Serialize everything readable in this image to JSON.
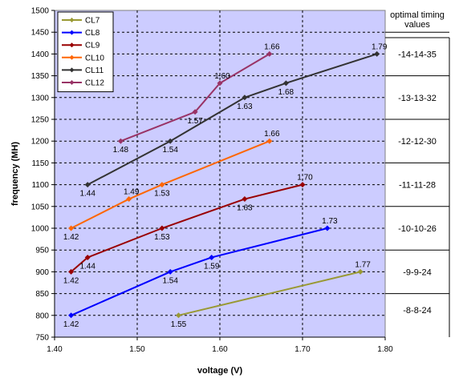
{
  "chart_data": {
    "type": "line",
    "xlabel": "voltage (V)",
    "ylabel": "frequency (MH)",
    "xlim": [
      1.4,
      1.8
    ],
    "ylim": [
      750,
      1500
    ],
    "x_ticks": [
      "1.40",
      "1.50",
      "1.60",
      "1.70",
      "1.80"
    ],
    "y_ticks": [
      "750",
      "800",
      "850",
      "900",
      "950",
      "1000",
      "1050",
      "1100",
      "1150",
      "1200",
      "1250",
      "1300",
      "1350",
      "1400",
      "1450",
      "1500"
    ],
    "grid": true,
    "legend_position": "top-left",
    "plot_background": "#ccccff",
    "series": [
      {
        "name": "CL7",
        "color": "#999933",
        "points": [
          [
            1.55,
            800
          ],
          [
            1.77,
            900
          ]
        ],
        "labels": [
          {
            "text": "1.55",
            "pos": "below"
          },
          {
            "text": "1.77",
            "pos": "above"
          }
        ]
      },
      {
        "name": "CL8",
        "color": "#0000ff",
        "points": [
          [
            1.42,
            800
          ],
          [
            1.54,
            900
          ],
          [
            1.59,
            933
          ],
          [
            1.73,
            1000
          ]
        ],
        "labels": [
          {
            "text": "1.42",
            "pos": "below"
          },
          {
            "text": "1.54",
            "pos": "below"
          },
          {
            "text": "1.59",
            "pos": "below"
          },
          {
            "text": "1.73",
            "pos": "above"
          }
        ]
      },
      {
        "name": "CL9",
        "color": "#990000",
        "points": [
          [
            1.42,
            900
          ],
          [
            1.44,
            933
          ],
          [
            1.53,
            1000
          ],
          [
            1.63,
            1067
          ],
          [
            1.7,
            1100
          ]
        ],
        "labels": [
          {
            "text": "1.42",
            "pos": "below"
          },
          {
            "text": "1.44",
            "pos": "below"
          },
          {
            "text": "1.53",
            "pos": "below"
          },
          {
            "text": "1.63",
            "pos": "below"
          },
          {
            "text": "1.70",
            "pos": "above"
          }
        ]
      },
      {
        "name": "CL10",
        "color": "#ff6600",
        "points": [
          [
            1.42,
            1000
          ],
          [
            1.49,
            1067
          ],
          [
            1.53,
            1100
          ],
          [
            1.66,
            1200
          ]
        ],
        "labels": [
          {
            "text": "1.42",
            "pos": "below"
          },
          {
            "text": "1.49",
            "pos": "above"
          },
          {
            "text": "1.53",
            "pos": "below"
          },
          {
            "text": "1.66",
            "pos": "above"
          }
        ]
      },
      {
        "name": "CL11",
        "color": "#333333",
        "points": [
          [
            1.44,
            1100
          ],
          [
            1.54,
            1200
          ],
          [
            1.63,
            1300
          ],
          [
            1.68,
            1333
          ],
          [
            1.79,
            1400
          ]
        ],
        "labels": [
          {
            "text": "1.44",
            "pos": "below"
          },
          {
            "text": "1.54",
            "pos": "below"
          },
          {
            "text": "1.63",
            "pos": "below"
          },
          {
            "text": "1.68",
            "pos": "below"
          },
          {
            "text": "1.79",
            "pos": "above"
          }
        ]
      },
      {
        "name": "CL12",
        "color": "#993366",
        "points": [
          [
            1.48,
            1200
          ],
          [
            1.57,
            1267
          ],
          [
            1.6,
            1333
          ],
          [
            1.66,
            1400
          ]
        ],
        "labels": [
          {
            "text": "1.48",
            "pos": "below"
          },
          {
            "text": "1.57",
            "pos": "below"
          },
          {
            "text": "1.60",
            "pos": "above"
          },
          {
            "text": "1.66",
            "pos": "above"
          }
        ]
      }
    ]
  },
  "side_table": {
    "header_line1": "optimal timing",
    "header_line2": "values",
    "rows": [
      {
        "text": "-14-14-35",
        "y_top": 1350,
        "y_bottom": 1450
      },
      {
        "text": "-13-13-32",
        "y_top": 1250,
        "y_bottom": 1350
      },
      {
        "text": "-12-12-30",
        "y_top": 1150,
        "y_bottom": 1250
      },
      {
        "text": "-11-11-28",
        "y_top": 1050,
        "y_bottom": 1150
      },
      {
        "text": "-10-10-26",
        "y_top": 950,
        "y_bottom": 1050
      },
      {
        "text": "-9-9-24",
        "y_top": 850,
        "y_bottom": 950
      },
      {
        "text": "-8-8-24",
        "y_top": 775,
        "y_bottom": 850
      }
    ]
  }
}
